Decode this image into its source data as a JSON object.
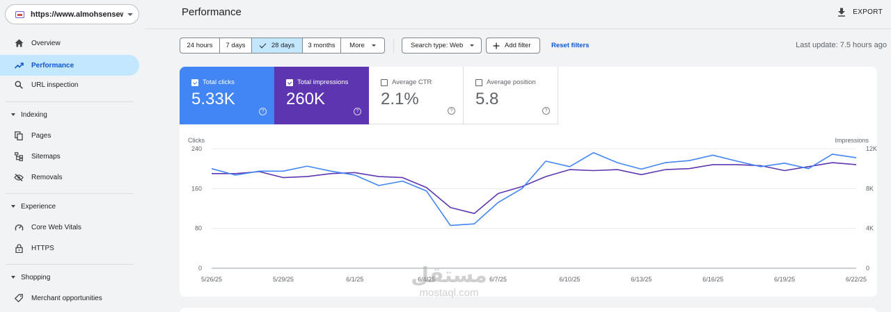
{
  "sidebar": {
    "property_url": "https://www.almohsensewi...",
    "items_top": [
      {
        "label": "Overview",
        "icon": "home-icon"
      },
      {
        "label": "Performance",
        "icon": "trending-up-icon",
        "active": true
      },
      {
        "label": "URL inspection",
        "icon": "search-icon"
      }
    ],
    "sections": [
      {
        "title": "Indexing",
        "items": [
          {
            "label": "Pages",
            "icon": "pages-icon"
          },
          {
            "label": "Sitemaps",
            "icon": "sitemap-icon"
          },
          {
            "label": "Removals",
            "icon": "eye-off-icon"
          }
        ]
      },
      {
        "title": "Experience",
        "items": [
          {
            "label": "Core Web Vitals",
            "icon": "gauge-icon"
          },
          {
            "label": "HTTPS",
            "icon": "lock-icon"
          }
        ]
      },
      {
        "title": "Shopping",
        "items": [
          {
            "label": "Merchant opportunities",
            "icon": "tag-icon"
          }
        ]
      }
    ]
  },
  "header": {
    "title": "Performance",
    "export_label": "EXPORT"
  },
  "filters": {
    "date_ranges": [
      "24 hours",
      "7 days",
      "28 days",
      "3 months"
    ],
    "selected_range": "28 days",
    "more_label": "More",
    "search_type": "Search type: Web",
    "add_filter": "Add filter",
    "reset_filters": "Reset filters",
    "last_update": "Last update: 7.5 hours ago"
  },
  "metrics": [
    {
      "label": "Total clicks",
      "value": "5.33K",
      "checked": true,
      "color": "#4285f4"
    },
    {
      "label": "Total impressions",
      "value": "260K",
      "checked": true,
      "color": "#5e35b1"
    },
    {
      "label": "Average CTR",
      "value": "2.1%",
      "checked": false
    },
    {
      "label": "Average position",
      "value": "5.8",
      "checked": false
    }
  ],
  "chart_data": {
    "type": "line",
    "x": [
      "5/26/25",
      "5/27/25",
      "5/28/25",
      "5/29/25",
      "5/30/25",
      "5/31/25",
      "6/1/25",
      "6/2/25",
      "6/3/25",
      "6/4/25",
      "6/5/25",
      "6/6/25",
      "6/7/25",
      "6/8/25",
      "6/9/25",
      "6/10/25",
      "6/11/25",
      "6/12/25",
      "6/13/25",
      "6/14/25",
      "6/15/25",
      "6/16/25",
      "6/17/25",
      "6/18/25",
      "6/19/25",
      "6/20/25",
      "6/21/25",
      "6/22/25"
    ],
    "x_tick_labels": [
      "5/26/25",
      "5/29/25",
      "6/1/25",
      "6/4/25",
      "6/7/25",
      "6/10/25",
      "6/13/25",
      "6/16/25",
      "6/19/25",
      "6/22/25"
    ],
    "left_axis": {
      "label": "Clicks",
      "ticks": [
        "0",
        "80",
        "160",
        "240"
      ],
      "range": [
        0,
        240
      ]
    },
    "right_axis": {
      "label": "Impressions",
      "ticks": [
        "0",
        "4K",
        "8K",
        "12K"
      ],
      "range": [
        0,
        12000
      ]
    },
    "series": [
      {
        "name": "Clicks",
        "axis": "left",
        "color": "#4285f4",
        "values": [
          200,
          187,
          195,
          195,
          205,
          195,
          187,
          166,
          175,
          155,
          86,
          89,
          132,
          160,
          215,
          204,
          232,
          212,
          199,
          212,
          216,
          227,
          215,
          204,
          211,
          200,
          229,
          222
        ]
      },
      {
        "name": "Impressions",
        "axis": "right",
        "color": "#5e35b1",
        "values": [
          9500,
          9500,
          9700,
          9100,
          9200,
          9500,
          9600,
          9200,
          9100,
          8100,
          6100,
          5500,
          7500,
          8200,
          9200,
          9900,
          9800,
          9900,
          9400,
          9900,
          10000,
          10400,
          10400,
          10300,
          9800,
          10200,
          10600,
          10400
        ]
      }
    ],
    "grid": true
  },
  "watermark": {
    "logo": "مستقل",
    "text": "mostaql.com"
  }
}
